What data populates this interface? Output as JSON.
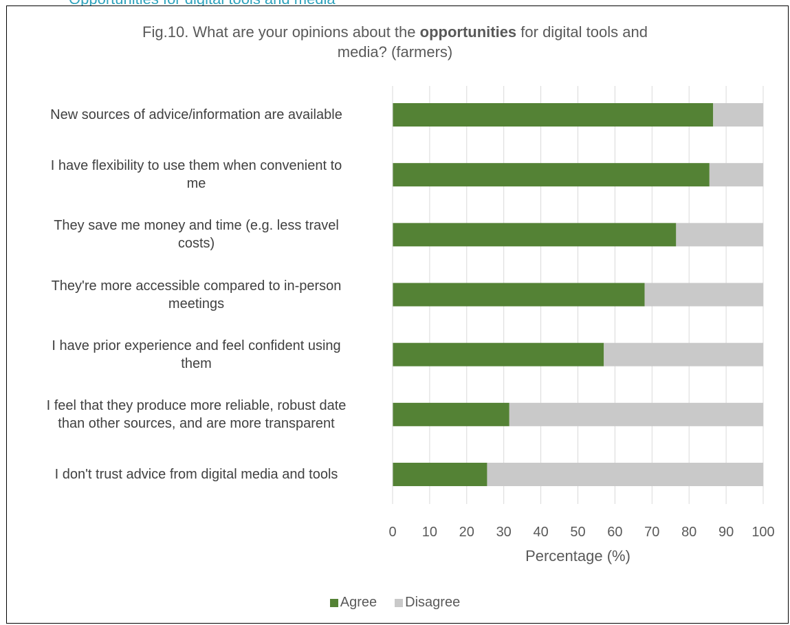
{
  "page_header": "Opportunities for digital tools and media",
  "chart_data": {
    "type": "bar",
    "orientation": "horizontal",
    "stacked": true,
    "title_parts": [
      "Fig.10. What are your opinions about the ",
      "opportunities",
      " for digital tools and"
    ],
    "title_line2": "media? (farmers)",
    "categories": [
      [
        "New sources of advice/information are available"
      ],
      [
        "I have flexibility to use them when convenient to",
        "me"
      ],
      [
        "They save me money and time (e.g. less travel",
        "costs)"
      ],
      [
        "They're more accessible compared to in-person",
        "meetings"
      ],
      [
        "I have prior experience and feel confident using",
        "them"
      ],
      [
        "I feel that they produce more reliable, robust date",
        "than other sources, and are more transparent"
      ],
      [
        "I don't trust advice from digital media and tools"
      ]
    ],
    "series": [
      {
        "name": "Agree",
        "color": "#548235",
        "values": [
          86.5,
          85.5,
          76.5,
          68,
          57,
          31.5,
          25.5
        ]
      },
      {
        "name": "Disagree",
        "color": "#c9c9c9",
        "values": [
          13.5,
          14.5,
          23.5,
          32,
          43,
          68.5,
          74.5
        ]
      }
    ],
    "xlabel": "Percentage (%)",
    "xlim": [
      0,
      100
    ],
    "xticks": [
      "0",
      "10",
      "20",
      "30",
      "40",
      "50",
      "60",
      "70",
      "80",
      "90",
      "100"
    ],
    "grid": true,
    "legend_position": "bottom"
  }
}
